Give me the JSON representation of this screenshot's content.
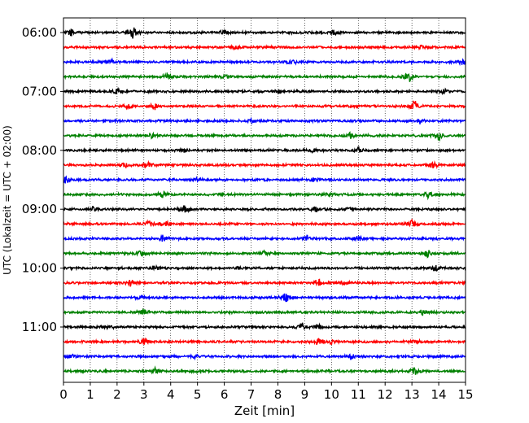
{
  "chart_data": {
    "type": "line",
    "title": "",
    "xlabel": "Zeit  [min]",
    "ylabel": "UTC (Lokalzeit = UTC + 02:00)",
    "xlim": [
      0,
      15
    ],
    "xticks": [
      "0",
      "1",
      "2",
      "3",
      "4",
      "5",
      "6",
      "7",
      "8",
      "9",
      "10",
      "11",
      "12",
      "13",
      "14",
      "15"
    ],
    "yticks": [
      "06:00",
      "07:00",
      "08:00",
      "09:00",
      "10:00",
      "11:00"
    ],
    "grid": "vertical dotted lines at each minute",
    "legend": "none",
    "trace_interval_min": 15,
    "trace_colors": [
      "#000000",
      "#ff0000",
      "#0000ff",
      "#008000"
    ],
    "traces": [
      {
        "start": "06:00",
        "bursts": [
          [
            0.3,
            0.6
          ],
          [
            2.6,
            1.0
          ],
          [
            6.0,
            0.4
          ],
          [
            10.1,
            0.4
          ]
        ]
      },
      {
        "start": "06:15",
        "bursts": [
          [
            6.4,
            0.4
          ],
          [
            13.3,
            0.3
          ]
        ]
      },
      {
        "start": "06:30",
        "bursts": [
          [
            1.8,
            0.4
          ],
          [
            8.5,
            0.6
          ],
          [
            14.9,
            0.5
          ]
        ]
      },
      {
        "start": "06:45",
        "bursts": [
          [
            3.9,
            0.8
          ],
          [
            12.9,
            0.9
          ],
          [
            6.0,
            0.3
          ]
        ]
      },
      {
        "start": "07:00",
        "bursts": [
          [
            2.0,
            0.5
          ],
          [
            14.2,
            0.4
          ],
          [
            8.0,
            0.3
          ]
        ]
      },
      {
        "start": "07:15",
        "bursts": [
          [
            3.4,
            0.6
          ],
          [
            13.1,
            1.0
          ],
          [
            2.4,
            0.4
          ]
        ]
      },
      {
        "start": "07:30",
        "bursts": [
          [
            13.3,
            0.4
          ],
          [
            7.0,
            0.3
          ]
        ]
      },
      {
        "start": "07:45",
        "bursts": [
          [
            3.3,
            0.6
          ],
          [
            10.7,
            0.5
          ],
          [
            14.0,
            0.8
          ]
        ]
      },
      {
        "start": "08:00",
        "bursts": [
          [
            9.3,
            0.5
          ],
          [
            11.0,
            0.4
          ],
          [
            4.5,
            0.3
          ]
        ]
      },
      {
        "start": "08:15",
        "bursts": [
          [
            2.3,
            0.6
          ],
          [
            3.1,
            0.6
          ],
          [
            13.8,
            0.7
          ]
        ]
      },
      {
        "start": "08:30",
        "bursts": [
          [
            0.1,
            0.6
          ],
          [
            9.4,
            0.6
          ],
          [
            5.0,
            0.3
          ]
        ]
      },
      {
        "start": "08:45",
        "bursts": [
          [
            3.7,
            0.6
          ],
          [
            9.9,
            0.4
          ],
          [
            13.6,
            0.6
          ]
        ]
      },
      {
        "start": "09:00",
        "bursts": [
          [
            4.5,
            1.0
          ],
          [
            9.4,
            0.5
          ],
          [
            1.1,
            0.4
          ],
          [
            10.7,
            0.4
          ]
        ]
      },
      {
        "start": "09:15",
        "bursts": [
          [
            3.8,
            0.7
          ],
          [
            13.0,
            0.8
          ],
          [
            3.2,
            0.5
          ]
        ]
      },
      {
        "start": "09:30",
        "bursts": [
          [
            3.7,
            0.6
          ],
          [
            9.1,
            0.6
          ],
          [
            11.0,
            0.5
          ]
        ]
      },
      {
        "start": "09:45",
        "bursts": [
          [
            2.9,
            0.5
          ],
          [
            7.5,
            0.4
          ],
          [
            13.6,
            0.7
          ]
        ]
      },
      {
        "start": "10:00",
        "bursts": [
          [
            3.4,
            0.4
          ],
          [
            13.9,
            0.5
          ],
          [
            6.5,
            0.3
          ]
        ]
      },
      {
        "start": "10:15",
        "bursts": [
          [
            2.5,
            0.5
          ],
          [
            9.5,
            0.7
          ],
          [
            10.4,
            0.4
          ]
        ]
      },
      {
        "start": "10:30",
        "bursts": [
          [
            8.3,
            0.8
          ],
          [
            2.9,
            0.4
          ]
        ]
      },
      {
        "start": "10:45",
        "bursts": [
          [
            3.0,
            0.6
          ],
          [
            13.4,
            0.6
          ]
        ]
      },
      {
        "start": "11:00",
        "bursts": [
          [
            1.7,
            0.4
          ],
          [
            8.9,
            0.7
          ],
          [
            9.5,
            0.5
          ]
        ]
      },
      {
        "start": "11:15",
        "bursts": [
          [
            3.0,
            0.7
          ],
          [
            9.5,
            0.6
          ],
          [
            10.0,
            0.5
          ],
          [
            13.2,
            0.4
          ]
        ]
      },
      {
        "start": "11:30",
        "bursts": [
          [
            0.3,
            0.4
          ],
          [
            10.7,
            0.7
          ],
          [
            4.9,
            0.3
          ]
        ]
      },
      {
        "start": "11:45",
        "bursts": [
          [
            3.4,
            0.5
          ],
          [
            5.1,
            0.4
          ],
          [
            13.1,
            0.8
          ]
        ]
      }
    ]
  }
}
